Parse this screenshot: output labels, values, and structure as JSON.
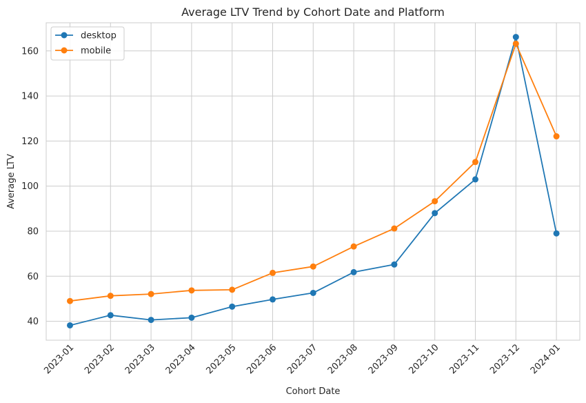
{
  "chart_data": {
    "type": "line",
    "title": "Average LTV Trend by Cohort Date and Platform",
    "xlabel": "Cohort Date",
    "ylabel": "Average LTV",
    "categories": [
      "2023-01",
      "2023-02",
      "2023-03",
      "2023-04",
      "2023-05",
      "2023-06",
      "2023-07",
      "2023-08",
      "2023-09",
      "2023-10",
      "2023-11",
      "2023-12",
      "2024-01"
    ],
    "ylim": [
      31.6,
      172.5
    ],
    "yticks": [
      40,
      60,
      80,
      100,
      120,
      140,
      160
    ],
    "grid": true,
    "legend_position": "top-left",
    "series": [
      {
        "name": "desktop",
        "color": "#1f77b4",
        "values": [
          38.2,
          42.7,
          40.6,
          41.6,
          46.5,
          49.7,
          52.6,
          61.8,
          65.2,
          88.0,
          103.0,
          166.2,
          79.0
        ]
      },
      {
        "name": "mobile",
        "color": "#ff7f0e",
        "values": [
          49.0,
          51.3,
          52.1,
          53.7,
          54.0,
          61.5,
          64.3,
          73.2,
          81.2,
          93.3,
          110.7,
          163.2,
          122.1
        ]
      }
    ]
  }
}
